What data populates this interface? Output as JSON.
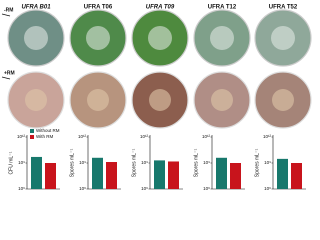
{
  "row_labels": [
    "-RM",
    "+RM"
  ],
  "strains": [
    "UFRA B01",
    "UFRA T06",
    "UFRA T09",
    "UFRA T12",
    "UFRA T52"
  ],
  "legend": [
    {
      "name": "Without RM",
      "color": "#17786c"
    },
    {
      "name": "With RM",
      "color": "#c8141c"
    }
  ],
  "chart_data": [
    {
      "type": "bar",
      "ylabel": "CFU mL⁻¹",
      "categories": [
        null,
        null
      ],
      "values": [
        5000000000,
        1000000000
      ],
      "log": true,
      "ylim": [
        1000000,
        1000000000000
      ],
      "yticks": [
        {
          "value": 1000000,
          "label": "10⁶"
        },
        {
          "value": 1000000000,
          "label": "10⁹"
        },
        {
          "value": 1000000000000,
          "label": "10¹²"
        }
      ]
    },
    {
      "type": "bar",
      "ylabel": "Spores mL⁻¹",
      "categories": [
        null,
        null
      ],
      "values": [
        4000000000,
        1300000000
      ],
      "log": true,
      "ylim": [
        1000000,
        1000000000000
      ],
      "yticks": [
        {
          "value": 1000000,
          "label": "10⁶"
        },
        {
          "value": 1000000000,
          "label": "10⁹"
        },
        {
          "value": 1000000000000,
          "label": "10¹²"
        }
      ]
    },
    {
      "type": "bar",
      "ylabel": "Spores mL⁻¹",
      "categories": [
        null,
        null
      ],
      "values": [
        2000000000,
        1500000000
      ],
      "log": true,
      "ylim": [
        1000000,
        1000000000000
      ],
      "yticks": [
        {
          "value": 1000000,
          "label": "10⁶"
        },
        {
          "value": 1000000000,
          "label": "10⁹"
        },
        {
          "value": 1000000000000,
          "label": "10¹²"
        }
      ]
    },
    {
      "type": "bar",
      "ylabel": "Spores mL⁻¹",
      "categories": [
        null,
        null
      ],
      "values": [
        4000000000,
        1000000000
      ],
      "log": true,
      "ylim": [
        1000000,
        1000000000000
      ],
      "yticks": [
        {
          "value": 1000000,
          "label": "10⁶"
        },
        {
          "value": 1000000000,
          "label": "10⁹"
        },
        {
          "value": 1000000000000,
          "label": "10¹²"
        }
      ]
    },
    {
      "type": "bar",
      "ylabel": "Spores mL⁻¹",
      "categories": [
        null,
        null
      ],
      "values": [
        3000000000,
        1000000000
      ],
      "log": true,
      "ylim": [
        1000000,
        1000000000000
      ],
      "yticks": [
        {
          "value": 1000000,
          "label": "10⁶"
        },
        {
          "value": 1000000000,
          "label": "10⁹"
        },
        {
          "value": 1000000000000,
          "label": "10¹²"
        }
      ]
    }
  ]
}
